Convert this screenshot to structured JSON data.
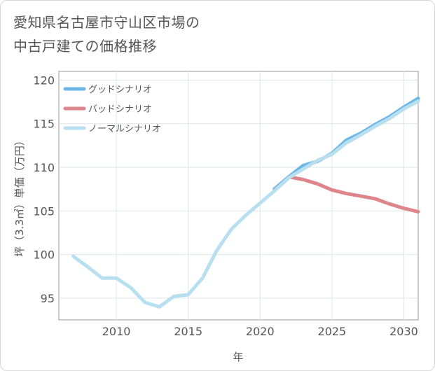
{
  "title_line1": "愛知県名古屋市守山区市場の",
  "title_line2": "中古戸建ての価格推移",
  "chart_data": {
    "type": "line",
    "xlabel": "年",
    "ylabel": "坪（3.3㎡）単価（万円）",
    "xlim": [
      2006,
      2031
    ],
    "ylim": [
      92.5,
      121
    ],
    "xticks": [
      2010,
      2015,
      2020,
      2025,
      2030
    ],
    "yticks": [
      95,
      100,
      105,
      110,
      115,
      120
    ],
    "grid": true,
    "legend_position": "top-left",
    "series": [
      {
        "name": "グッドシナリオ",
        "color": "#6cb6e6",
        "x": [
          2021,
          2022,
          2023,
          2024,
          2025,
          2026,
          2027,
          2028,
          2029,
          2030,
          2031
        ],
        "y": [
          107.5,
          108.9,
          110.2,
          110.7,
          111.6,
          113.1,
          113.9,
          114.9,
          115.8,
          116.9,
          117.9
        ]
      },
      {
        "name": "バッドシナリオ",
        "color": "#de858c",
        "x": [
          2021,
          2022,
          2023,
          2024,
          2025,
          2026,
          2027,
          2028,
          2029,
          2030,
          2031
        ],
        "y": [
          107.5,
          108.9,
          108.6,
          108.1,
          107.4,
          107.0,
          106.7,
          106.4,
          105.8,
          105.3,
          104.9
        ]
      },
      {
        "name": "ノーマルシナリオ",
        "color": "#b8dff0",
        "x": [
          2007,
          2008,
          2009,
          2010,
          2011,
          2012,
          2013,
          2014,
          2015,
          2016,
          2017,
          2018,
          2019,
          2020,
          2021,
          2022,
          2023,
          2024,
          2025,
          2026,
          2027,
          2028,
          2029,
          2030,
          2031
        ],
        "y": [
          99.8,
          98.6,
          97.3,
          97.3,
          96.2,
          94.5,
          94.0,
          95.2,
          95.4,
          97.3,
          100.5,
          102.9,
          104.5,
          105.9,
          107.3,
          108.8,
          109.8,
          110.8,
          111.5,
          112.8,
          113.7,
          114.7,
          115.6,
          116.7,
          117.6
        ]
      }
    ]
  }
}
